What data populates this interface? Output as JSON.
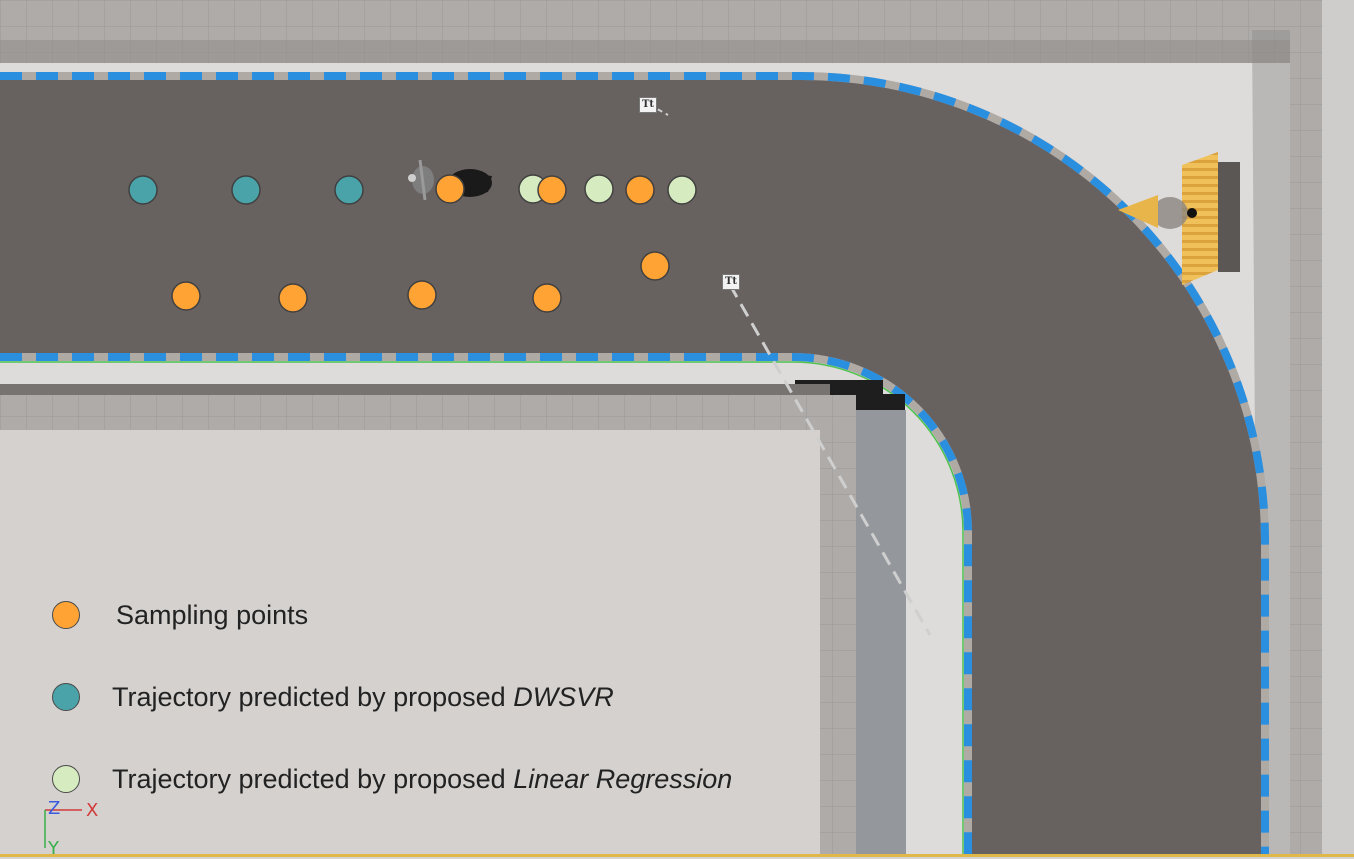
{
  "legend": {
    "items": [
      {
        "label": "Sampling points",
        "italic": "",
        "color": "#ffa334"
      },
      {
        "label": "Trajectory predicted by proposed ",
        "italic": "DWSVR",
        "color": "#4aa3a8"
      },
      {
        "label": "Trajectory predicted by proposed ",
        "italic": "Linear Regression",
        "color": "#d6ebc0"
      }
    ]
  },
  "axis_gizmo": {
    "z": "Z",
    "x": "X",
    "y": "Y"
  },
  "text_actor_icon": "Tt",
  "colors": {
    "sampling": "#ffa334",
    "dwsvr": "#4aa3a8",
    "linear": "#d6ebc0",
    "road": "#676260",
    "curb_blue": "#2b8fe0",
    "wall": "#a9a6a4"
  },
  "icons": [
    "camera-cone-icon",
    "text-actor-icon",
    "character-icon"
  ]
}
